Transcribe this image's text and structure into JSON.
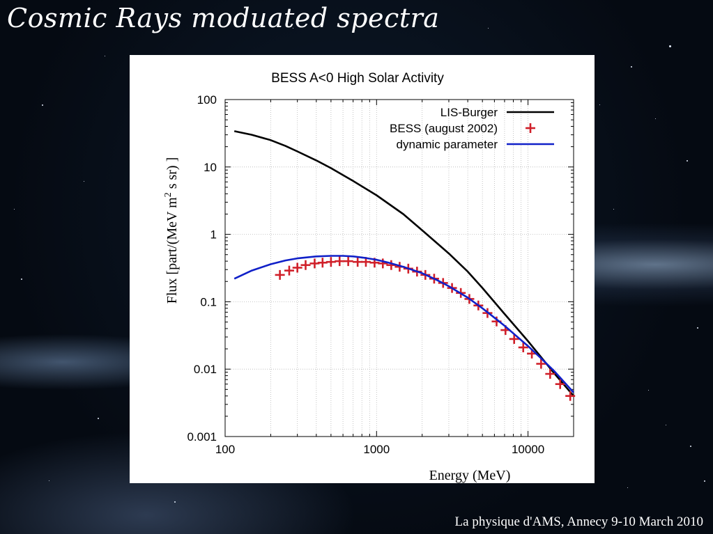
{
  "slide": {
    "title": "Cosmic Rays moduated spectra",
    "footer": "La physique d'AMS, Annecy 9-10 March 2010"
  },
  "chart_data": {
    "type": "line",
    "title": "BESS A<0 High Solar Activity",
    "xlabel": "Energy (MeV)",
    "ylabel": "Flux  [part/(MeV m^2 s sr) ]",
    "ylabel_parts": {
      "before": "Flux  [part/(MeV m",
      "sup": "2",
      "after": " s sr) ]"
    },
    "xscale": "log",
    "yscale": "log",
    "xlim": [
      100,
      20000
    ],
    "ylim": [
      0.001,
      100
    ],
    "xticks": [
      {
        "value": 100,
        "label": "100"
      },
      {
        "value": 1000,
        "label": "1000"
      },
      {
        "value": 10000,
        "label": "10000"
      }
    ],
    "yticks": [
      {
        "value": 0.001,
        "label": "0.001"
      },
      {
        "value": 0.01,
        "label": "0.01"
      },
      {
        "value": 0.1,
        "label": "0.1"
      },
      {
        "value": 1,
        "label": "1"
      },
      {
        "value": 10,
        "label": "10"
      },
      {
        "value": 100,
        "label": "100"
      }
    ],
    "grid": true,
    "legend_position": "top-right",
    "series": [
      {
        "name": "LIS-Burger",
        "style": "line",
        "color": "#000000",
        "points": [
          [
            115,
            34
          ],
          [
            150,
            30
          ],
          [
            200,
            25
          ],
          [
            250,
            20.5
          ],
          [
            300,
            17
          ],
          [
            400,
            12.5
          ],
          [
            500,
            9.6
          ],
          [
            700,
            6.2
          ],
          [
            1000,
            3.8
          ],
          [
            1500,
            2.0
          ],
          [
            2000,
            1.15
          ],
          [
            3000,
            0.52
          ],
          [
            4000,
            0.28
          ],
          [
            5000,
            0.16
          ],
          [
            7000,
            0.066
          ],
          [
            10000,
            0.026
          ],
          [
            15000,
            0.0085
          ],
          [
            20000,
            0.004
          ]
        ]
      },
      {
        "name": "BESS (august 2002)",
        "style": "points",
        "marker": "plus",
        "color": "#d0202a",
        "points": [
          [
            230,
            0.25
          ],
          [
            265,
            0.29
          ],
          [
            300,
            0.32
          ],
          [
            340,
            0.35
          ],
          [
            390,
            0.37
          ],
          [
            440,
            0.38
          ],
          [
            500,
            0.39
          ],
          [
            570,
            0.4
          ],
          [
            650,
            0.4
          ],
          [
            750,
            0.39
          ],
          [
            850,
            0.39
          ],
          [
            970,
            0.38
          ],
          [
            1100,
            0.37
          ],
          [
            1250,
            0.35
          ],
          [
            1420,
            0.33
          ],
          [
            1620,
            0.31
          ],
          [
            1850,
            0.28
          ],
          [
            2100,
            0.25
          ],
          [
            2400,
            0.22
          ],
          [
            2750,
            0.19
          ],
          [
            3150,
            0.16
          ],
          [
            3600,
            0.135
          ],
          [
            4100,
            0.11
          ],
          [
            4700,
            0.088
          ],
          [
            5400,
            0.068
          ],
          [
            6200,
            0.051
          ],
          [
            7100,
            0.038
          ],
          [
            8100,
            0.028
          ],
          [
            9300,
            0.021
          ],
          [
            10600,
            0.017
          ],
          [
            12200,
            0.012
          ],
          [
            14000,
            0.0085
          ],
          [
            16300,
            0.006
          ],
          [
            19000,
            0.004
          ]
        ]
      },
      {
        "name": "dynamic parameter",
        "style": "line",
        "color": "#1020c8",
        "points": [
          [
            115,
            0.22
          ],
          [
            150,
            0.29
          ],
          [
            200,
            0.36
          ],
          [
            250,
            0.41
          ],
          [
            300,
            0.44
          ],
          [
            400,
            0.47
          ],
          [
            500,
            0.48
          ],
          [
            600,
            0.48
          ],
          [
            700,
            0.47
          ],
          [
            850,
            0.445
          ],
          [
            1000,
            0.42
          ],
          [
            1200,
            0.38
          ],
          [
            1500,
            0.33
          ],
          [
            2000,
            0.265
          ],
          [
            2500,
            0.21
          ],
          [
            3000,
            0.17
          ],
          [
            4000,
            0.115
          ],
          [
            5000,
            0.08
          ],
          [
            6000,
            0.058
          ],
          [
            7000,
            0.044
          ],
          [
            8000,
            0.034
          ],
          [
            10000,
            0.022
          ],
          [
            12000,
            0.015
          ],
          [
            15000,
            0.0092
          ],
          [
            20000,
            0.0045
          ]
        ]
      }
    ]
  }
}
